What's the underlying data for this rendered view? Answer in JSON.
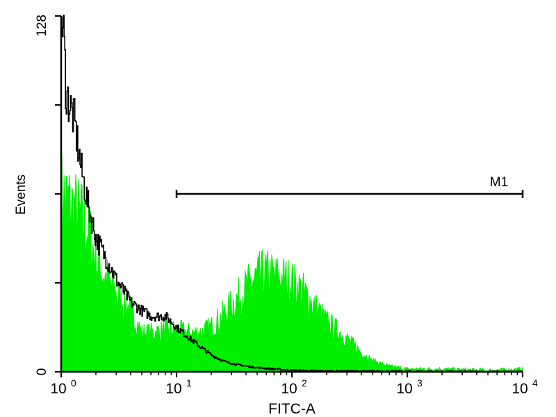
{
  "chart_data": {
    "type": "area",
    "xlabel": "FITC-A",
    "ylabel": "Events",
    "x_scale": "log",
    "xlim": [
      1,
      10000
    ],
    "ylim": [
      0,
      128
    ],
    "x_ticks": [
      {
        "v": 1,
        "base": "10",
        "exp": "0"
      },
      {
        "v": 10,
        "base": "10",
        "exp": "1"
      },
      {
        "v": 100,
        "base": "10",
        "exp": "2"
      },
      {
        "v": 1000,
        "base": "10",
        "exp": "3"
      },
      {
        "v": 10000,
        "base": "10",
        "exp": "4"
      }
    ],
    "y_tick_labels": [
      {
        "v": 0,
        "label": "0"
      },
      {
        "v": 128,
        "label": "128"
      }
    ],
    "y_minor_ticks": [
      32,
      64,
      96
    ],
    "grid": false,
    "marker": {
      "label": "M1",
      "from": 10,
      "to": 10000,
      "level": 64
    },
    "colors": {
      "control": "#000000",
      "sample": "#00ee00"
    },
    "series": [
      {
        "style": "line",
        "x": [
          1,
          1.05,
          1.1,
          1.2,
          1.3,
          1.4,
          1.5,
          1.7,
          2,
          2.5,
          3,
          4,
          5,
          6,
          8,
          10,
          13,
          16,
          20,
          25,
          30,
          40,
          50,
          70,
          100,
          200,
          500,
          10000
        ],
        "y": [
          128,
          120,
          100,
          95,
          90,
          80,
          72,
          60,
          48,
          40,
          33,
          25,
          22,
          20,
          20,
          16,
          12,
          9,
          6,
          4,
          3,
          2,
          1.5,
          1,
          0.5,
          0.3,
          0.2,
          0
        ]
      },
      {
        "style": "filled",
        "x": [
          1,
          1.2,
          1.5,
          1.8,
          2,
          2.5,
          3,
          4,
          5,
          6,
          8,
          10,
          13,
          16,
          20,
          25,
          30,
          40,
          50,
          60,
          70,
          90,
          100,
          130,
          160,
          200,
          300,
          400,
          500,
          700,
          1000,
          2000,
          5000,
          10000
        ],
        "y": [
          64,
          60,
          55,
          48,
          40,
          33,
          28,
          22,
          14,
          14,
          15,
          15,
          14,
          14,
          16,
          20,
          24,
          30,
          34,
          35,
          34,
          33,
          32,
          28,
          23,
          18,
          12,
          7,
          4,
          2,
          1,
          1,
          0.5,
          1
        ]
      }
    ]
  }
}
